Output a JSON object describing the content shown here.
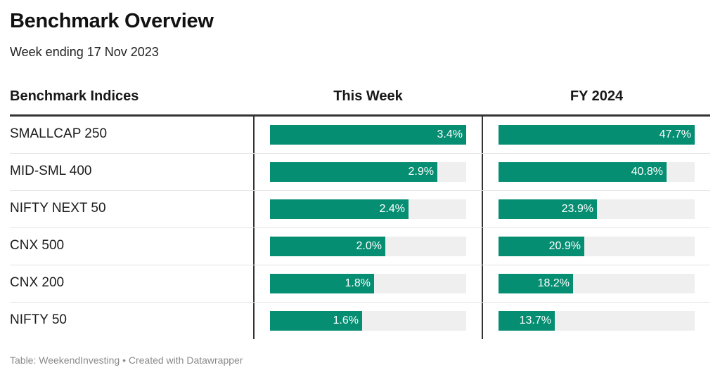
{
  "title": "Benchmark Overview",
  "subtitle": "Week ending 17 Nov 2023",
  "footer": "Table: WeekendInvesting • Created with Datawrapper",
  "colors": {
    "bar": "#068e73",
    "track": "#efefef"
  },
  "chart_data": {
    "type": "table",
    "columns": [
      "Benchmark Indices",
      "This Week",
      "FY 2024"
    ],
    "rows": [
      {
        "index": "SMALLCAP 250",
        "this_week": 3.4,
        "fy2024": 47.7,
        "this_week_label": "3.4%",
        "fy2024_label": "47.7%"
      },
      {
        "index": "MID-SML 400",
        "this_week": 2.9,
        "fy2024": 40.8,
        "this_week_label": "2.9%",
        "fy2024_label": "40.8%"
      },
      {
        "index": "NIFTY NEXT 50",
        "this_week": 2.4,
        "fy2024": 23.9,
        "this_week_label": "2.4%",
        "fy2024_label": "23.9%"
      },
      {
        "index": "CNX 500",
        "this_week": 2.0,
        "fy2024": 20.9,
        "this_week_label": "2.0%",
        "fy2024_label": "20.9%"
      },
      {
        "index": "CNX 200",
        "this_week": 1.8,
        "fy2024": 18.2,
        "this_week_label": "1.8%",
        "fy2024_label": "18.2%"
      },
      {
        "index": "NIFTY 50",
        "this_week": 1.6,
        "fy2024": 13.7,
        "this_week_label": "1.6%",
        "fy2024_label": "13.7%"
      }
    ]
  }
}
